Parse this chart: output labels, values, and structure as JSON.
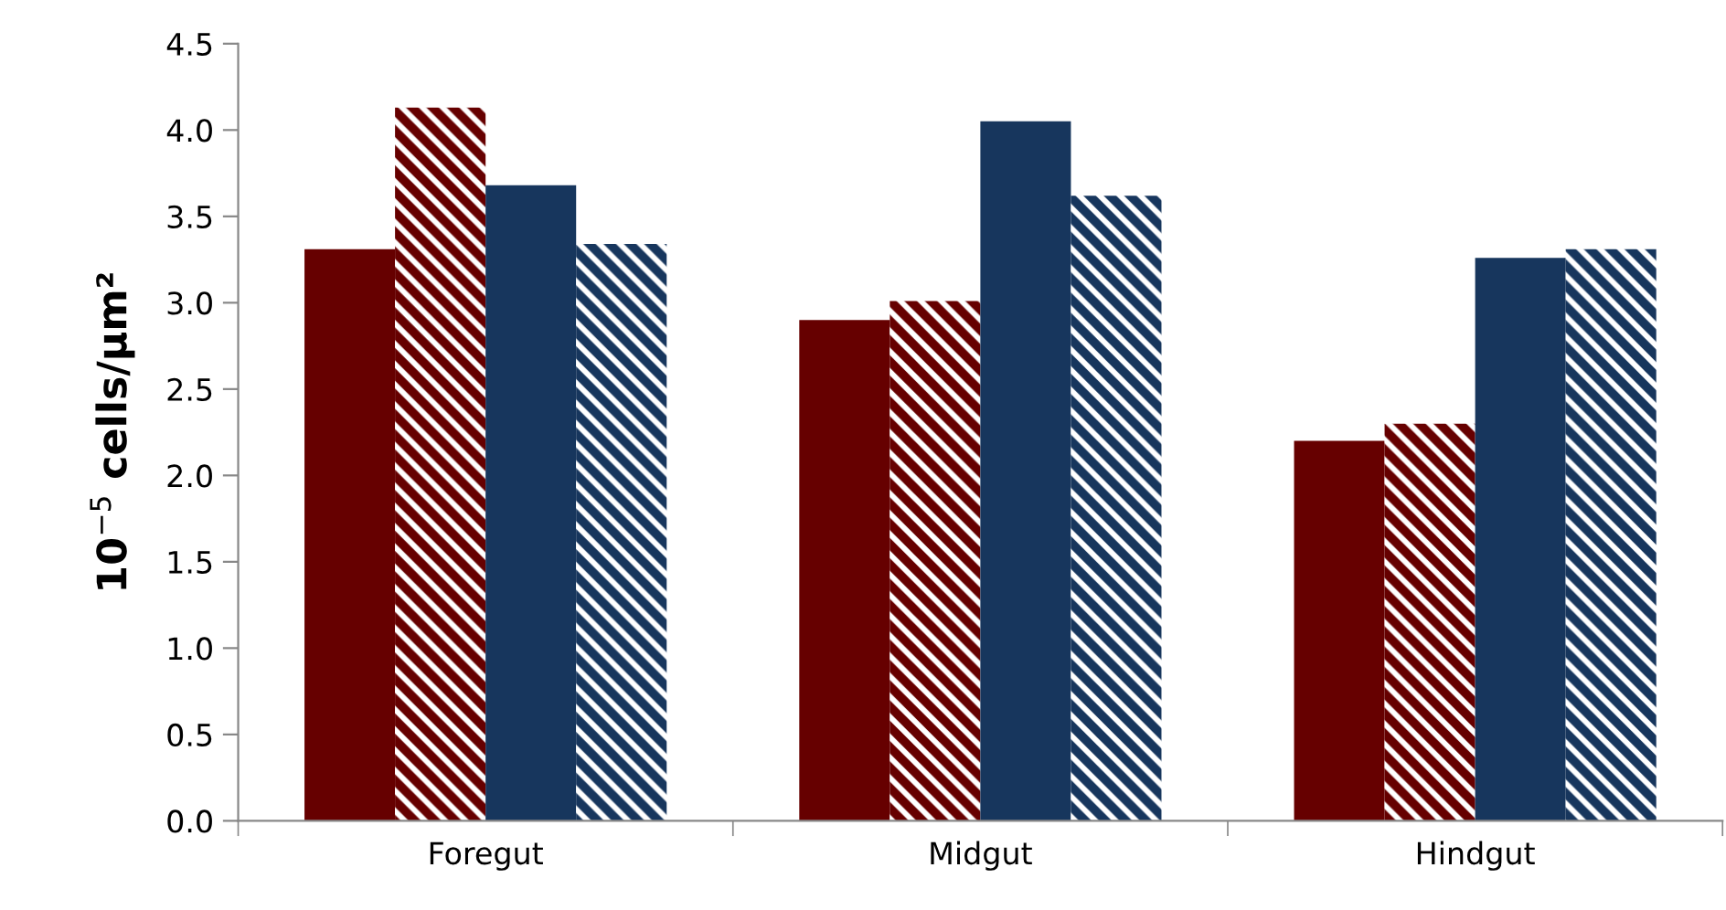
{
  "chart_data": {
    "type": "bar",
    "ylabel": "10$^{−5}$ cells/µm²",
    "categories": [
      "Foregut",
      "Midgut",
      "Hindgut"
    ],
    "series": [
      {
        "color": "#660000",
        "values": [
          3.31,
          2.9,
          2.2
        ]
      },
      {
        "color": "#660000",
        "values": [
          4.13,
          3.01,
          2.3
        ]
      },
      {
        "color": "#17365d",
        "values": [
          3.68,
          4.05,
          3.26
        ]
      },
      {
        "color": "#17365d",
        "values": [
          3.34,
          3.62,
          3.31
        ]
      }
    ],
    "ylim": [
      0,
      4.5
    ],
    "yticks": [
      {
        "value": 0,
        "label": "0.0"
      },
      {
        "value": 0.5,
        "label": "0.5"
      },
      {
        "value": 1,
        "label": "1.0"
      },
      {
        "value": 1.5,
        "label": "1.5"
      },
      {
        "value": 2,
        "label": "2.0"
      },
      {
        "value": 2.5,
        "label": "2.5"
      },
      {
        "value": 3,
        "label": "3.0"
      },
      {
        "value": 3.5,
        "label": "3.5"
      },
      {
        "value": 4,
        "label": "4.0"
      },
      {
        "value": 4.5,
        "label": "4.5"
      }
    ],
    "grid": false,
    "legend": false
  }
}
